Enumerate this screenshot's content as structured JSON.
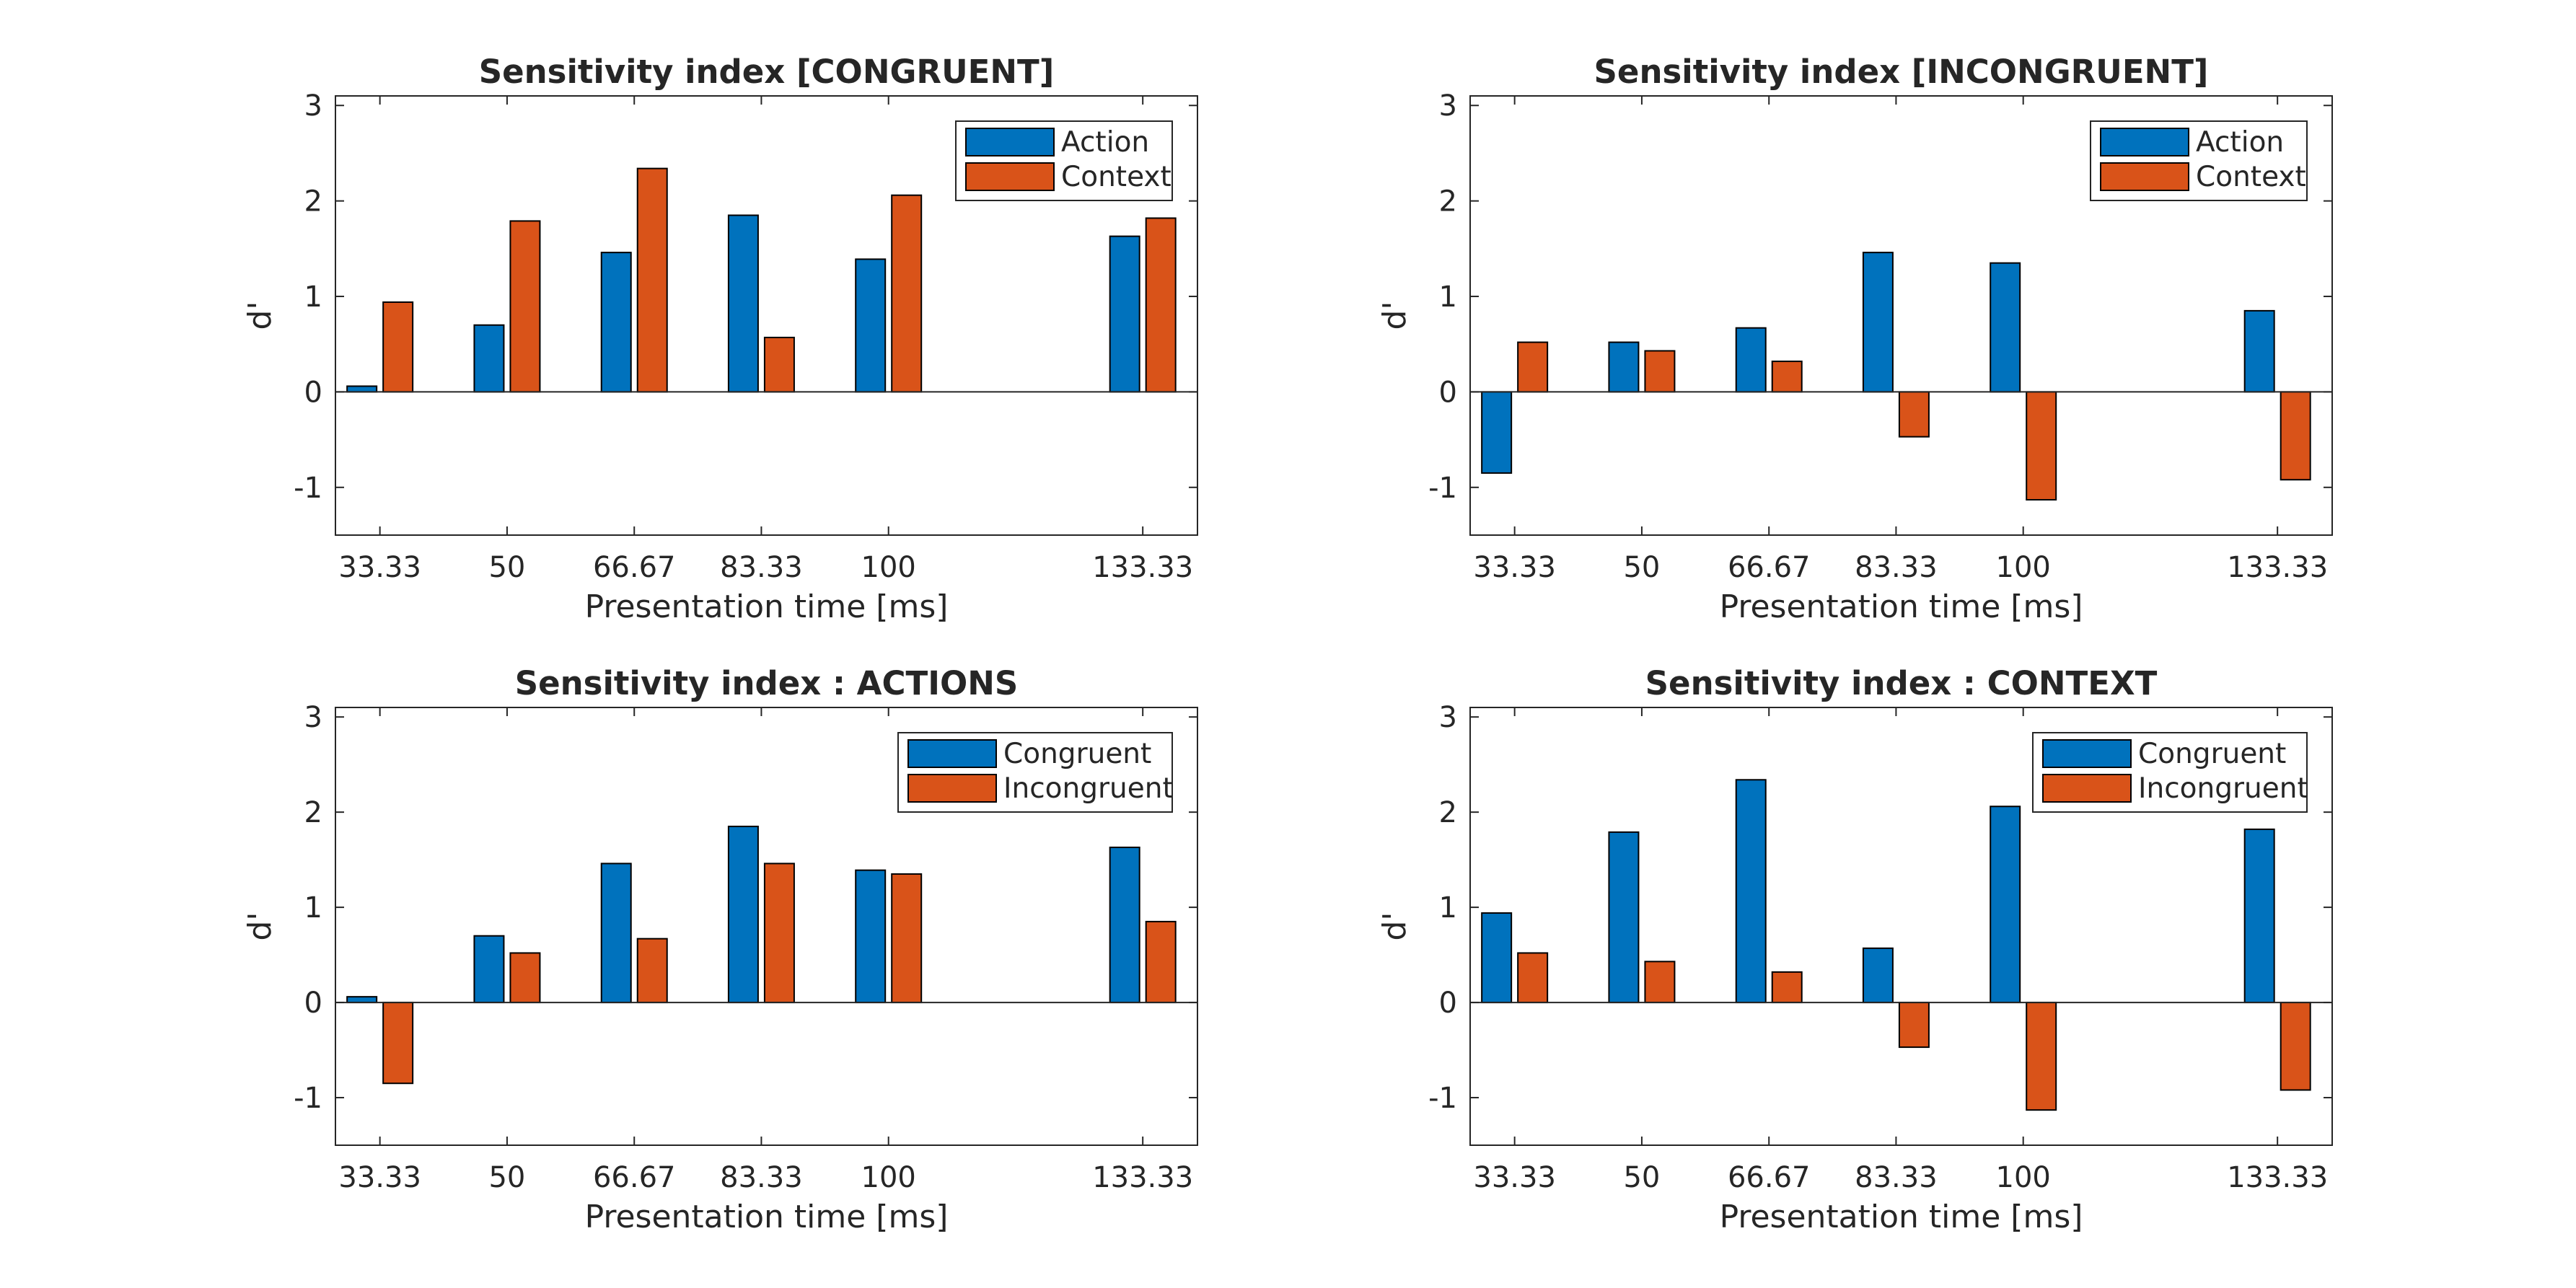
{
  "chart_data": [
    {
      "type": "bar",
      "title": "Sensitivity index [CONGRUENT]",
      "xlabel": "Presentation time [ms]",
      "ylabel": "d'",
      "x": [
        33.33,
        50,
        66.67,
        83.33,
        100,
        133.33
      ],
      "x_tick_labels": [
        "33.33",
        "50",
        "66.67",
        "83.33",
        "100",
        "133.33"
      ],
      "xlim": [
        27.5,
        140.5
      ],
      "ylim": [
        -1.5,
        3.1
      ],
      "y_ticks": [
        -1,
        0,
        1,
        2,
        3
      ],
      "y_tick_labels": [
        "-1",
        "0",
        "1",
        "2",
        "3"
      ],
      "series": [
        {
          "name": "Action",
          "color": "#0072BD",
          "values": [
            0.06,
            0.7,
            1.46,
            1.85,
            1.39,
            1.63
          ]
        },
        {
          "name": "Context",
          "color": "#D95319",
          "values": [
            0.94,
            1.79,
            2.34,
            0.57,
            2.06,
            1.82
          ]
        }
      ],
      "legend": "top-right",
      "grid": false
    },
    {
      "type": "bar",
      "title": "Sensitivity index [INCONGRUENT]",
      "xlabel": "Presentation time [ms]",
      "ylabel": "d'",
      "x": [
        33.33,
        50,
        66.67,
        83.33,
        100,
        133.33
      ],
      "x_tick_labels": [
        "33.33",
        "50",
        "66.67",
        "83.33",
        "100",
        "133.33"
      ],
      "xlim": [
        27.5,
        140.5
      ],
      "ylim": [
        -1.5,
        3.1
      ],
      "y_ticks": [
        -1,
        0,
        1,
        2,
        3
      ],
      "y_tick_labels": [
        "-1",
        "0",
        "1",
        "2",
        "3"
      ],
      "series": [
        {
          "name": "Action",
          "color": "#0072BD",
          "values": [
            -0.85,
            0.52,
            0.67,
            1.46,
            1.35,
            0.85
          ]
        },
        {
          "name": "Context",
          "color": "#D95319",
          "values": [
            0.52,
            0.43,
            0.32,
            -0.47,
            -1.13,
            -0.92
          ]
        }
      ],
      "legend": "top-right",
      "grid": false
    },
    {
      "type": "bar",
      "title": "Sensitivity index : ACTIONS",
      "xlabel": "Presentation time [ms]",
      "ylabel": "d'",
      "x": [
        33.33,
        50,
        66.67,
        83.33,
        100,
        133.33
      ],
      "x_tick_labels": [
        "33.33",
        "50",
        "66.67",
        "83.33",
        "100",
        "133.33"
      ],
      "xlim": [
        27.5,
        140.5
      ],
      "ylim": [
        -1.5,
        3.1
      ],
      "y_ticks": [
        -1,
        0,
        1,
        2,
        3
      ],
      "y_tick_labels": [
        "-1",
        "0",
        "1",
        "2",
        "3"
      ],
      "series": [
        {
          "name": "Congruent",
          "color": "#0072BD",
          "values": [
            0.06,
            0.7,
            1.46,
            1.85,
            1.39,
            1.63
          ]
        },
        {
          "name": "Incongruent",
          "color": "#D95319",
          "values": [
            -0.85,
            0.52,
            0.67,
            1.46,
            1.35,
            0.85
          ]
        }
      ],
      "legend": "top-right",
      "grid": false
    },
    {
      "type": "bar",
      "title": "Sensitivity index : CONTEXT",
      "xlabel": "Presentation time [ms]",
      "ylabel": "d'",
      "x": [
        33.33,
        50,
        66.67,
        83.33,
        100,
        133.33
      ],
      "x_tick_labels": [
        "33.33",
        "50",
        "66.67",
        "83.33",
        "100",
        "133.33"
      ],
      "xlim": [
        27.5,
        140.5
      ],
      "ylim": [
        -1.5,
        3.1
      ],
      "y_ticks": [
        -1,
        0,
        1,
        2,
        3
      ],
      "y_tick_labels": [
        "-1",
        "0",
        "1",
        "2",
        "3"
      ],
      "series": [
        {
          "name": "Congruent",
          "color": "#0072BD",
          "values": [
            0.94,
            1.79,
            2.34,
            0.57,
            2.06,
            1.82
          ]
        },
        {
          "name": "Incongruent",
          "color": "#D95319",
          "values": [
            0.52,
            0.43,
            0.32,
            -0.47,
            -1.13,
            -0.92
          ]
        }
      ],
      "legend": "top-right",
      "grid": false
    }
  ]
}
